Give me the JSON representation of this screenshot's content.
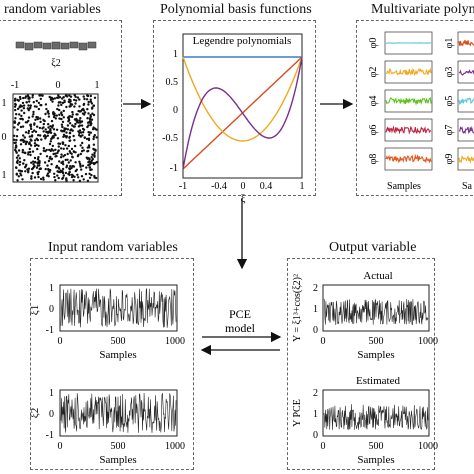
{
  "titles": {
    "random_variables": "random variables",
    "basis_functions": "Polynomial basis functions",
    "multivariate": "Multivariate polyn",
    "input": "Input random variables",
    "output": "Output variable"
  },
  "top_left": {
    "xi_label": "ξ2",
    "x_ticks": [
      "-1",
      "0",
      "1"
    ],
    "y_ticks": [
      "1",
      "0",
      "1"
    ]
  },
  "legendre": {
    "inner_title": "Legendre polynomials",
    "xlabel": "ξ",
    "x_ticks": [
      "-1",
      "-0.4",
      "0",
      "0.4",
      "1"
    ],
    "y_ticks": [
      "1",
      "0.5",
      "0",
      "-0.5",
      "-1"
    ],
    "colors": {
      "p0": "#3a7fc9",
      "p1": "#d94a1e",
      "p2": "#f2a81d",
      "p3": "#7a2e90"
    }
  },
  "multivariate": {
    "left_labels": [
      "φ0",
      "φ2",
      "φ4",
      "φ6",
      "φ8"
    ],
    "right_labels": [
      "φ1",
      "φ3",
      "φ5",
      "φ7",
      "φ9"
    ],
    "left_colors": [
      "#5bc6d6",
      "#f2a81d",
      "#5cc21e",
      "#c0233f",
      "#e2581c"
    ],
    "right_colors": [
      "#d94a1e",
      "#7a2e90",
      "#5bc6d6",
      "#7a2e90",
      "#f2a81d"
    ],
    "xlabel": "Samples",
    "xlabel_right": "Sa"
  },
  "input": {
    "series1_label": "ξ1",
    "series2_label": "ξ2",
    "y_ticks": [
      "1",
      "0",
      "-1"
    ],
    "x_ticks": [
      "0",
      "500",
      "1000"
    ],
    "xlabel": "Samples"
  },
  "model": {
    "line1": "PCE",
    "line2": "model"
  },
  "output": {
    "actual_label": "Actual",
    "estimated_label": "Estimated",
    "actual_ylabel": "Y = ξ1³+cos(ξ2)²",
    "estimated_ylabel": "Y PCE",
    "y_ticks": [
      "2",
      "1",
      "0"
    ],
    "x_ticks": [
      "0",
      "500",
      "1000"
    ],
    "xlabel": "Samples"
  }
}
